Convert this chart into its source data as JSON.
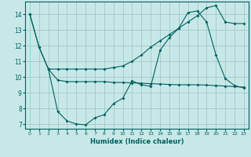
{
  "xlabel": "Humidex (Indice chaleur)",
  "bg_color": "#c8e8e8",
  "grid_color": "#a0c8c8",
  "line_color": "#006060",
  "xlim": [
    -0.5,
    23.5
  ],
  "ylim": [
    6.7,
    14.8
  ],
  "xticks": [
    0,
    1,
    2,
    3,
    4,
    5,
    6,
    7,
    8,
    9,
    10,
    11,
    12,
    13,
    14,
    15,
    16,
    17,
    18,
    19,
    20,
    21,
    22,
    23
  ],
  "yticks": [
    7,
    8,
    9,
    10,
    11,
    12,
    13,
    14
  ],
  "line1_x": [
    0,
    1,
    2,
    3,
    4,
    5,
    6,
    7,
    8,
    9,
    10,
    11,
    12,
    13,
    14,
    15,
    16,
    17,
    18,
    19,
    20,
    21,
    22,
    23
  ],
  "line1_y": [
    14.0,
    11.9,
    10.5,
    9.8,
    9.7,
    9.7,
    9.7,
    9.7,
    9.7,
    9.65,
    9.65,
    9.62,
    9.6,
    9.57,
    9.55,
    9.52,
    9.5,
    9.5,
    9.5,
    9.48,
    9.45,
    9.42,
    9.38,
    9.35
  ],
  "line2_x": [
    0,
    1,
    2,
    3,
    4,
    5,
    6,
    7,
    8,
    9,
    10,
    11,
    12,
    13,
    14,
    15,
    16,
    17,
    18,
    19,
    20,
    21,
    22,
    23
  ],
  "line2_y": [
    14.0,
    11.9,
    10.5,
    7.8,
    7.2,
    7.0,
    6.95,
    7.4,
    7.6,
    8.3,
    8.65,
    9.75,
    9.5,
    9.4,
    11.7,
    12.5,
    13.1,
    14.1,
    14.2,
    13.5,
    11.4,
    9.9,
    9.45,
    9.3
  ],
  "line3_x": [
    2,
    3,
    4,
    5,
    6,
    7,
    8,
    9,
    10,
    11,
    12,
    13,
    14,
    15,
    16,
    17,
    18,
    19,
    20,
    21,
    22,
    23
  ],
  "line3_y": [
    10.5,
    10.5,
    10.5,
    10.5,
    10.5,
    10.5,
    10.5,
    10.6,
    10.7,
    11.0,
    11.4,
    11.9,
    12.3,
    12.7,
    13.1,
    13.5,
    13.9,
    14.4,
    14.55,
    13.5,
    13.4,
    13.4
  ]
}
